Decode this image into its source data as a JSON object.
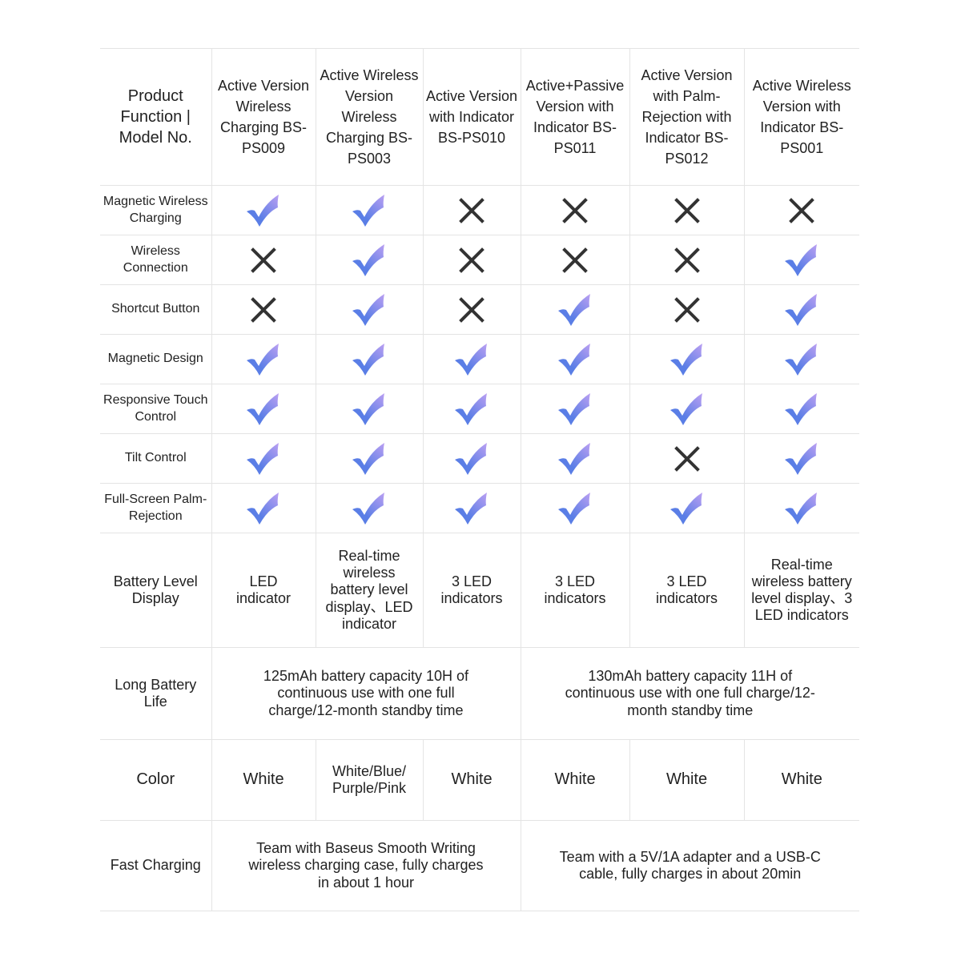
{
  "colors": {
    "check_start": "#5a7ee6",
    "check_end": "#bba0f2",
    "cross": "#333333",
    "border": "#e4e4e4"
  },
  "header": {
    "corner": "Product Function | Model No.",
    "models": [
      "Active Version Wireless Charging BS-PS009",
      "Active Wireless Version Wireless Charging BS-PS003",
      "Active Version with Indicator BS-PS010",
      "Active+Passive Version with Indicator BS-PS011",
      "Active Version with Palm-Rejection with Indicator BS-PS012",
      "Active Wireless Version with Indicator BS-PS001"
    ]
  },
  "features": [
    {
      "label": "Magnetic Wireless Charging",
      "values": [
        true,
        true,
        false,
        false,
        false,
        false
      ]
    },
    {
      "label": "Wireless Connection",
      "values": [
        false,
        true,
        false,
        false,
        false,
        true
      ]
    },
    {
      "label": "Shortcut Button",
      "values": [
        false,
        true,
        false,
        true,
        false,
        true
      ]
    },
    {
      "label": "Magnetic Design",
      "values": [
        true,
        true,
        true,
        true,
        true,
        true
      ]
    },
    {
      "label": "Responsive Touch Control",
      "values": [
        true,
        true,
        true,
        true,
        true,
        true
      ]
    },
    {
      "label": "Tilt Control",
      "values": [
        true,
        true,
        true,
        true,
        false,
        true
      ]
    },
    {
      "label": "Full-Screen Palm-Rejection",
      "values": [
        true,
        true,
        true,
        true,
        true,
        true
      ]
    }
  ],
  "battery_display": {
    "label": "Battery Level Display",
    "values": [
      "LED indicator",
      "Real-time wireless battery level display、LED indicator",
      "3 LED indicators",
      "3 LED indicators",
      "3 LED indicators",
      "Real-time wireless battery level display、3 LED indicators"
    ]
  },
  "battery_life": {
    "label": "Long Battery Life",
    "values": [
      "125mAh battery capacity 10H of continuous use with one full charge/12-month standby time",
      "130mAh battery capacity 11H of continuous use with one full charge/12-month standby time"
    ]
  },
  "color": {
    "label": "Color",
    "values": [
      "White",
      "White/Blue/ Purple/Pink",
      "White",
      "White",
      "White",
      "White"
    ]
  },
  "fast_charging": {
    "label": "Fast Charging",
    "values": [
      "Team with Baseus Smooth Writing wireless charging case, fully charges in about 1 hour",
      "Team with a 5V/1A adapter and a USB-C cable, fully charges in about 20min"
    ]
  }
}
